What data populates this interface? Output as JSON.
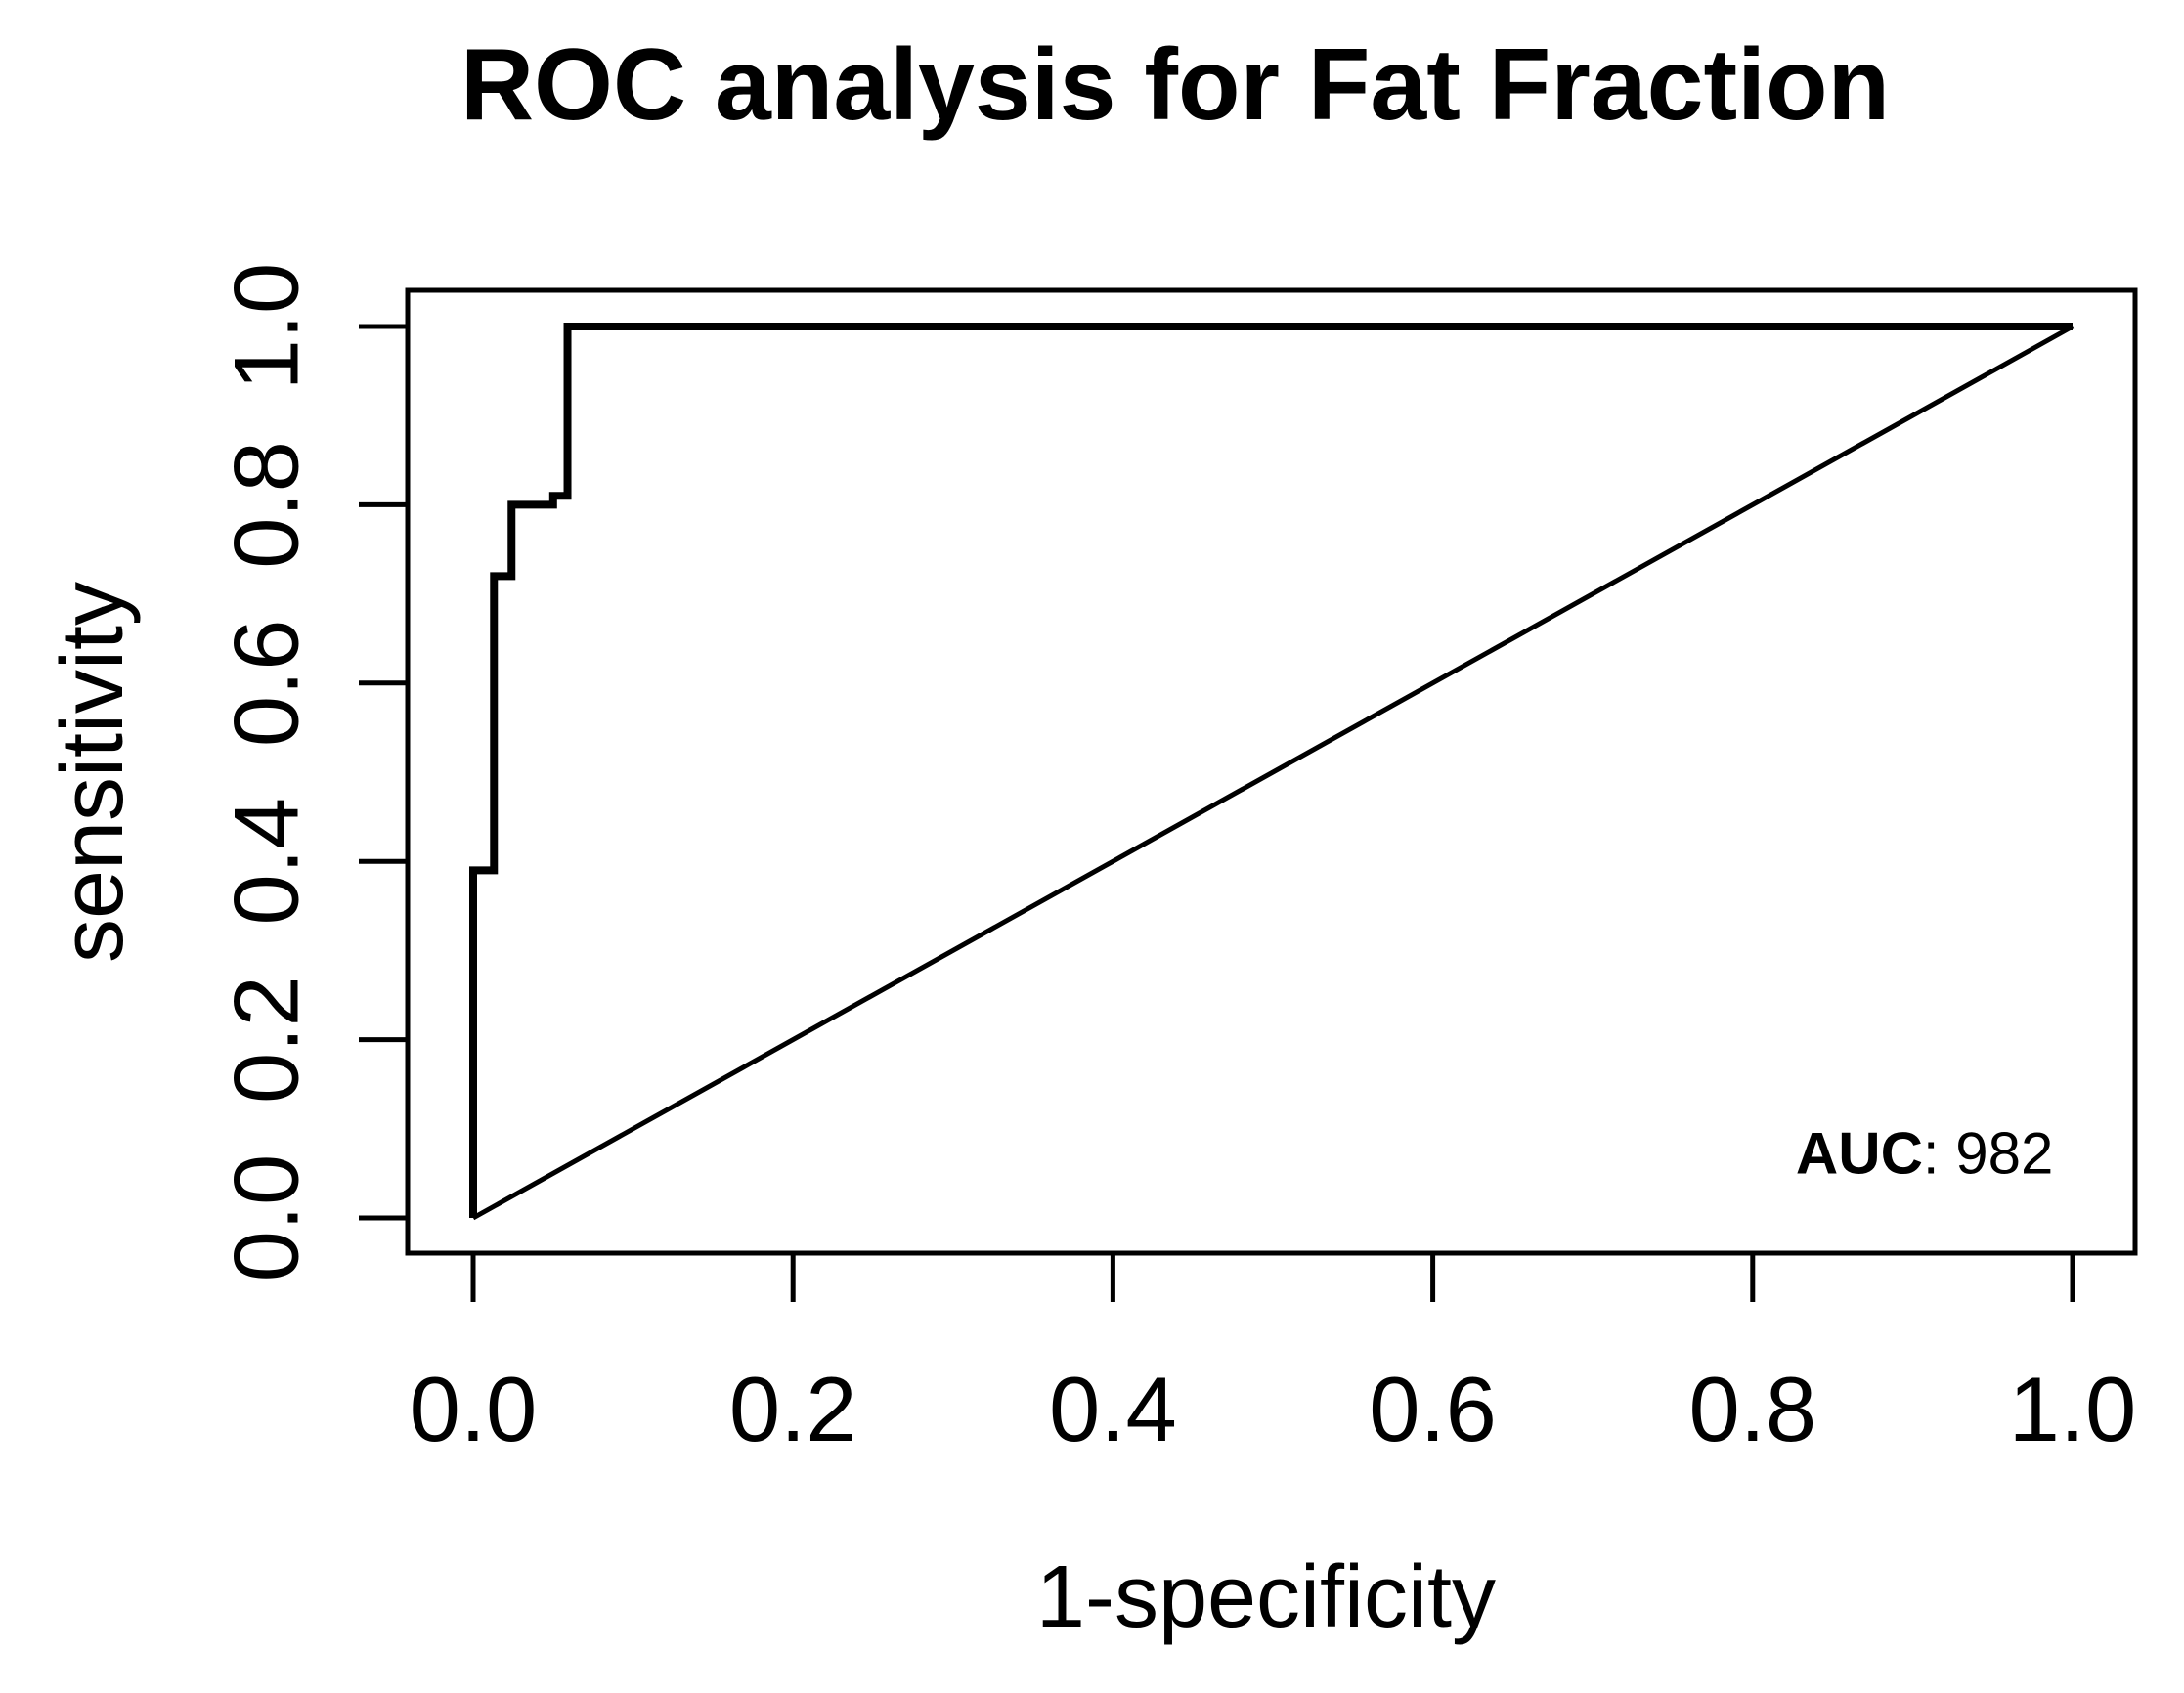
{
  "page": {
    "background": "#ffffff",
    "ink": "#000000"
  },
  "chart_data": {
    "type": "line",
    "subtype": "roc-step-curve",
    "title": "ROC analysis for Fat Fraction",
    "xlabel": "1-specificity",
    "ylabel": "sensitivity",
    "xlim": [
      0.0,
      1.0
    ],
    "ylim": [
      0.0,
      1.0
    ],
    "x_ticks": [
      0.0,
      0.2,
      0.4,
      0.6,
      0.8,
      1.0
    ],
    "x_tick_labels": [
      "0.0",
      "0.2",
      "0.4",
      "0.6",
      "0.8",
      "1.0"
    ],
    "y_ticks": [
      0.0,
      0.2,
      0.4,
      0.6,
      0.8,
      1.0
    ],
    "y_tick_labels": [
      "0.0",
      "0.2",
      "0.4",
      "0.6",
      "0.8",
      "1.0"
    ],
    "grid": false,
    "legend": "none",
    "series": [
      {
        "name": "ROC curve",
        "draw": "step",
        "line_width": 8,
        "color": "#000000",
        "points": [
          [
            0.0,
            0.0
          ],
          [
            0.0,
            0.39
          ],
          [
            0.013,
            0.39
          ],
          [
            0.013,
            0.72
          ],
          [
            0.024,
            0.72
          ],
          [
            0.024,
            0.8
          ],
          [
            0.05,
            0.8
          ],
          [
            0.05,
            0.81
          ],
          [
            0.059,
            0.81
          ],
          [
            0.059,
            1.0
          ],
          [
            1.0,
            1.0
          ]
        ]
      },
      {
        "name": "chance diagonal",
        "draw": "line",
        "line_width": 5,
        "color": "#000000",
        "points": [
          [
            0.0,
            0.0
          ],
          [
            1.0,
            1.0
          ]
        ]
      }
    ],
    "annotation": {
      "bold": "AUC",
      "rest": ": 982",
      "value_shown": "982",
      "x": 0.988,
      "y": 0.05,
      "anchor": "end"
    }
  }
}
